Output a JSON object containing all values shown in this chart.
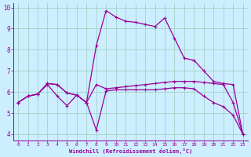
{
  "xlabel": "Windchill (Refroidissement éolien,°C)",
  "bg_color": "#cceeff",
  "line_color": "#990099",
  "grid_color": "#99ccbb",
  "xlim": [
    -0.5,
    23.5
  ],
  "ylim": [
    3.7,
    10.2
  ],
  "xticks": [
    0,
    1,
    2,
    3,
    4,
    5,
    6,
    7,
    8,
    9,
    10,
    11,
    12,
    13,
    14,
    15,
    16,
    17,
    18,
    19,
    20,
    21,
    22,
    23
  ],
  "yticks": [
    4,
    5,
    6,
    7,
    8,
    9,
    10
  ],
  "line1_x": [
    0,
    1,
    2,
    3,
    4,
    5,
    6,
    7,
    8,
    9,
    10,
    11,
    12,
    13,
    14,
    15,
    16,
    17,
    18,
    19,
    20,
    21,
    22,
    23
  ],
  "line1_y": [
    5.5,
    5.8,
    5.9,
    6.4,
    6.35,
    5.95,
    5.85,
    5.5,
    8.2,
    9.85,
    9.55,
    9.35,
    9.3,
    9.2,
    9.1,
    9.5,
    8.55,
    7.6,
    7.5,
    7.0,
    6.5,
    6.4,
    6.35,
    4.0
  ],
  "line2_x": [
    0,
    1,
    2,
    3,
    4,
    5,
    6,
    7,
    8,
    9,
    10,
    11,
    12,
    13,
    14,
    15,
    16,
    17,
    18,
    19,
    20,
    21,
    22,
    23
  ],
  "line2_y": [
    5.5,
    5.8,
    5.9,
    6.4,
    6.35,
    5.95,
    5.85,
    5.5,
    6.35,
    6.15,
    6.2,
    6.25,
    6.3,
    6.35,
    6.4,
    6.45,
    6.5,
    6.5,
    6.5,
    6.45,
    6.4,
    6.35,
    5.5,
    4.0
  ],
  "line3_x": [
    0,
    1,
    2,
    3,
    4,
    5,
    6,
    7,
    8,
    9,
    10,
    11,
    12,
    13,
    14,
    15,
    16,
    17,
    18,
    19,
    20,
    21,
    22,
    23
  ],
  "line3_y": [
    5.5,
    5.8,
    5.9,
    6.35,
    5.8,
    5.35,
    5.85,
    5.5,
    4.2,
    6.05,
    6.1,
    6.1,
    6.1,
    6.1,
    6.1,
    6.15,
    6.2,
    6.2,
    6.15,
    5.8,
    5.5,
    5.3,
    4.9,
    4.0
  ]
}
